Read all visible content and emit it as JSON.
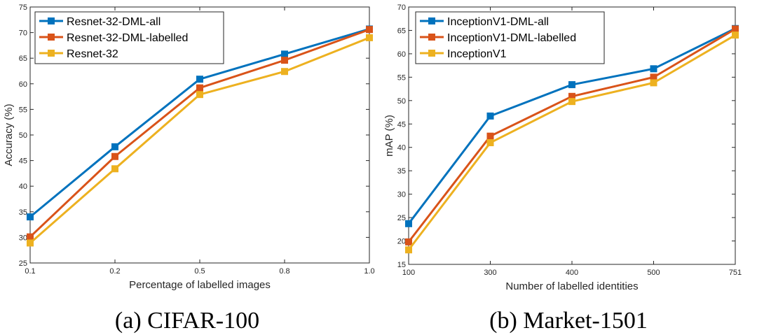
{
  "chart_data": [
    {
      "type": "line",
      "caption": "(a) CIFAR-100",
      "xlabel": "Percentage of labelled images",
      "ylabel": "Accuracy (%)",
      "categories": [
        "0.1",
        "0.2",
        "0.5",
        "0.8",
        "1.0"
      ],
      "ylim": [
        25,
        75
      ],
      "yticks": [
        25,
        30,
        35,
        40,
        45,
        50,
        55,
        60,
        65,
        70,
        75
      ],
      "grid": false,
      "legend_position": "top-left",
      "marker": "square",
      "series": [
        {
          "name": "Resnet-32-DML-all",
          "color": "#0072BD",
          "values": [
            34.0,
            47.7,
            60.9,
            65.8,
            70.7
          ]
        },
        {
          "name": "Resnet-32-DML-labelled",
          "color": "#D95319",
          "values": [
            30.1,
            45.8,
            59.2,
            64.6,
            70.6
          ]
        },
        {
          "name": "Resnet-32",
          "color": "#EDB120",
          "values": [
            28.9,
            43.4,
            57.9,
            62.4,
            69.0
          ]
        }
      ]
    },
    {
      "type": "line",
      "caption": "(b) Market-1501",
      "xlabel": "Number of labelled identities",
      "ylabel": "mAP (%)",
      "categories": [
        "100",
        "300",
        "400",
        "500",
        "751"
      ],
      "ylim": [
        15,
        70
      ],
      "yticks": [
        15,
        20,
        25,
        30,
        35,
        40,
        45,
        50,
        55,
        60,
        65,
        70
      ],
      "grid": false,
      "legend_position": "top-left",
      "marker": "square",
      "series": [
        {
          "name": "InceptionV1-DML-all",
          "color": "#0072BD",
          "values": [
            23.7,
            46.7,
            53.4,
            56.8,
            65.4
          ]
        },
        {
          "name": "InceptionV1-DML-labelled",
          "color": "#D95319",
          "values": [
            19.8,
            42.4,
            50.9,
            55.0,
            65.3
          ]
        },
        {
          "name": "InceptionV1",
          "color": "#EDB120",
          "values": [
            18.1,
            41.0,
            49.8,
            53.8,
            64.0
          ]
        }
      ]
    }
  ]
}
